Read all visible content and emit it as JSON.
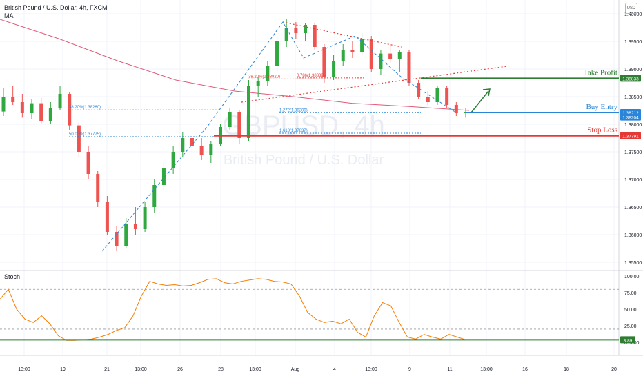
{
  "header": {
    "symbol_line": "British Pound / U.S. Dollar, 4h, FXCM",
    "indicator": "MA",
    "currency_badge": "USD"
  },
  "watermark": {
    "ticker": "GBPUSD, 4h",
    "name": "British Pound / U.S. Dollar"
  },
  "chart_data": [
    {
      "type": "candlestick",
      "title": "British Pound / U.S. Dollar, 4h, FXCM",
      "y_axis_side": "right",
      "ylim": [
        1.3535,
        1.4025
      ],
      "y_ticks": [
        "1.40000",
        "1.39500",
        "1.39000",
        "1.38500",
        "1.38000",
        "1.37500",
        "1.37000",
        "1.36500",
        "1.36000",
        "1.35500"
      ],
      "x_ticks": [
        "13:00",
        "19",
        "21",
        "13:00",
        "26",
        "28",
        "13:00",
        "Aug",
        "4",
        "13:00",
        "9",
        "11",
        "13:00",
        "16",
        "18",
        "20"
      ],
      "candles": [
        [
          1.3823,
          1.3865,
          1.3815,
          1.385
        ],
        [
          1.385,
          1.387,
          1.3835,
          1.384
        ],
        [
          1.384,
          1.3855,
          1.3812,
          1.382
        ],
        [
          1.382,
          1.3845,
          1.381,
          1.3838
        ],
        [
          1.3838,
          1.3848,
          1.38,
          1.3805
        ],
        [
          1.3805,
          1.384,
          1.38,
          1.383
        ],
        [
          1.383,
          1.387,
          1.3825,
          1.3855
        ],
        [
          1.3855,
          1.3858,
          1.379,
          1.3798
        ],
        [
          1.3798,
          1.3803,
          1.374,
          1.375
        ],
        [
          1.375,
          1.376,
          1.37,
          1.371
        ],
        [
          1.371,
          1.3715,
          1.365,
          1.366
        ],
        [
          1.366,
          1.367,
          1.36,
          1.3605
        ],
        [
          1.3605,
          1.3615,
          1.357,
          1.358
        ],
        [
          1.358,
          1.363,
          1.3575,
          1.362
        ],
        [
          1.362,
          1.365,
          1.36,
          1.361
        ],
        [
          1.361,
          1.366,
          1.3605,
          1.365
        ],
        [
          1.365,
          1.37,
          1.364,
          1.369
        ],
        [
          1.369,
          1.373,
          1.368,
          1.372
        ],
        [
          1.372,
          1.376,
          1.371,
          1.375
        ],
        [
          1.375,
          1.3785,
          1.374,
          1.3775
        ],
        [
          1.3775,
          1.378,
          1.375,
          1.376
        ],
        [
          1.376,
          1.3775,
          1.3735,
          1.3745
        ],
        [
          1.3745,
          1.377,
          1.373,
          1.3765
        ],
        [
          1.3765,
          1.38,
          1.376,
          1.3795
        ],
        [
          1.3795,
          1.383,
          1.379,
          1.3822
        ],
        [
          1.3822,
          1.3825,
          1.3765,
          1.3775
        ],
        [
          1.3775,
          1.388,
          1.377,
          1.387
        ],
        [
          1.387,
          1.3885,
          1.385,
          1.3878
        ],
        [
          1.3878,
          1.3915,
          1.387,
          1.3905
        ],
        [
          1.3905,
          1.396,
          1.3895,
          1.395
        ],
        [
          1.395,
          1.399,
          1.394,
          1.3975
        ],
        [
          1.3975,
          1.3985,
          1.3955,
          1.3965
        ],
        [
          1.3965,
          1.3983,
          1.395,
          1.398
        ],
        [
          1.398,
          1.3983,
          1.3935,
          1.394
        ],
        [
          1.394,
          1.3945,
          1.3875,
          1.3885
        ],
        [
          1.3885,
          1.3925,
          1.388,
          1.3915
        ],
        [
          1.3915,
          1.3945,
          1.3905,
          1.3935
        ],
        [
          1.3935,
          1.395,
          1.392,
          1.393
        ],
        [
          1.393,
          1.3965,
          1.3925,
          1.3955
        ],
        [
          1.3955,
          1.396,
          1.3895,
          1.39
        ],
        [
          1.39,
          1.3935,
          1.389,
          1.3928
        ],
        [
          1.3928,
          1.3945,
          1.391,
          1.3918
        ],
        [
          1.3918,
          1.3935,
          1.3895,
          1.393
        ],
        [
          1.393,
          1.3935,
          1.387,
          1.3875
        ],
        [
          1.3875,
          1.388,
          1.3845,
          1.385
        ],
        [
          1.385,
          1.386,
          1.3835,
          1.384
        ],
        [
          1.384,
          1.387,
          1.3835,
          1.3865
        ],
        [
          1.3865,
          1.387,
          1.383,
          1.3835
        ],
        [
          1.3835,
          1.384,
          1.3815,
          1.382
        ],
        [
          1.382,
          1.383,
          1.3812,
          1.3822
        ]
      ],
      "moving_average": {
        "name": "MA",
        "color": "#e05a7b",
        "values": [
          1.399,
          1.3955,
          1.3915,
          1.388,
          1.386,
          1.385,
          1.3838,
          1.3832,
          1.3825
        ]
      },
      "levels": [
        {
          "label": "Take Profit",
          "price": "1.38833",
          "value": 1.38833,
          "color": "#2e7d32"
        },
        {
          "label": "Buy Entry",
          "price": "1.38212",
          "value": 1.38212,
          "color": "#2a85d8"
        },
        {
          "label": "Stop Loss",
          "price": "1.37791",
          "value": 1.37791,
          "color": "#e53935"
        }
      ],
      "current_price": {
        "label": "1.38204",
        "value": 1.38204,
        "color": "#2a85d8"
      },
      "fib_labels": [
        {
          "text": "38.20%(1.38260)",
          "value": 1.3826,
          "color": "#2a85d8"
        },
        {
          "text": "50.00%(1.37775)",
          "value": 1.37775,
          "color": "#2a85d8"
        },
        {
          "text": "1.272(1.38209)",
          "value": 1.38209,
          "color": "#2a85d8"
        },
        {
          "text": "1.618(1.37837)",
          "value": 1.37837,
          "color": "#2a85d8"
        },
        {
          "text": "38.20%(1.38820)",
          "value": 1.3882,
          "color": "#e53935"
        },
        {
          "text": "0.786(1.38839)",
          "value": 1.38839,
          "color": "#e53935"
        }
      ],
      "trendlines": [
        {
          "style": "dotted",
          "color": "#e53935",
          "from": [
            1.3985
          ],
          "to": [
            1.394
          ]
        },
        {
          "style": "dotted",
          "color": "#e53935",
          "from": [
            1.384
          ],
          "to": [
            1.3905
          ]
        }
      ],
      "colors": {
        "up": "#26a69a",
        "up_alt": "#2fa83f",
        "down": "#ef5350",
        "grid": "#f0f3fa"
      }
    },
    {
      "type": "line",
      "title": "Stoch",
      "ylim": [
        0,
        100
      ],
      "y_ticks": [
        "100.00",
        "75.00",
        "50.00",
        "25.00",
        "0.0000"
      ],
      "hlines": [
        80,
        20
      ],
      "current_label": "3.89",
      "current_value": 3.89,
      "line_color": "#f57c00",
      "level_color": "#2e7d32",
      "values": [
        65,
        80,
        50,
        35,
        30,
        40,
        28,
        10,
        3,
        3,
        4,
        5,
        8,
        12,
        18,
        22,
        40,
        70,
        92,
        88,
        86,
        87,
        85,
        86,
        90,
        95,
        96,
        90,
        88,
        92,
        94,
        96,
        95,
        92,
        91,
        88,
        70,
        45,
        35,
        30,
        32,
        28,
        35,
        15,
        8,
        40,
        60,
        55,
        30,
        8,
        5,
        12,
        8,
        5,
        12,
        8,
        4
      ]
    }
  ]
}
